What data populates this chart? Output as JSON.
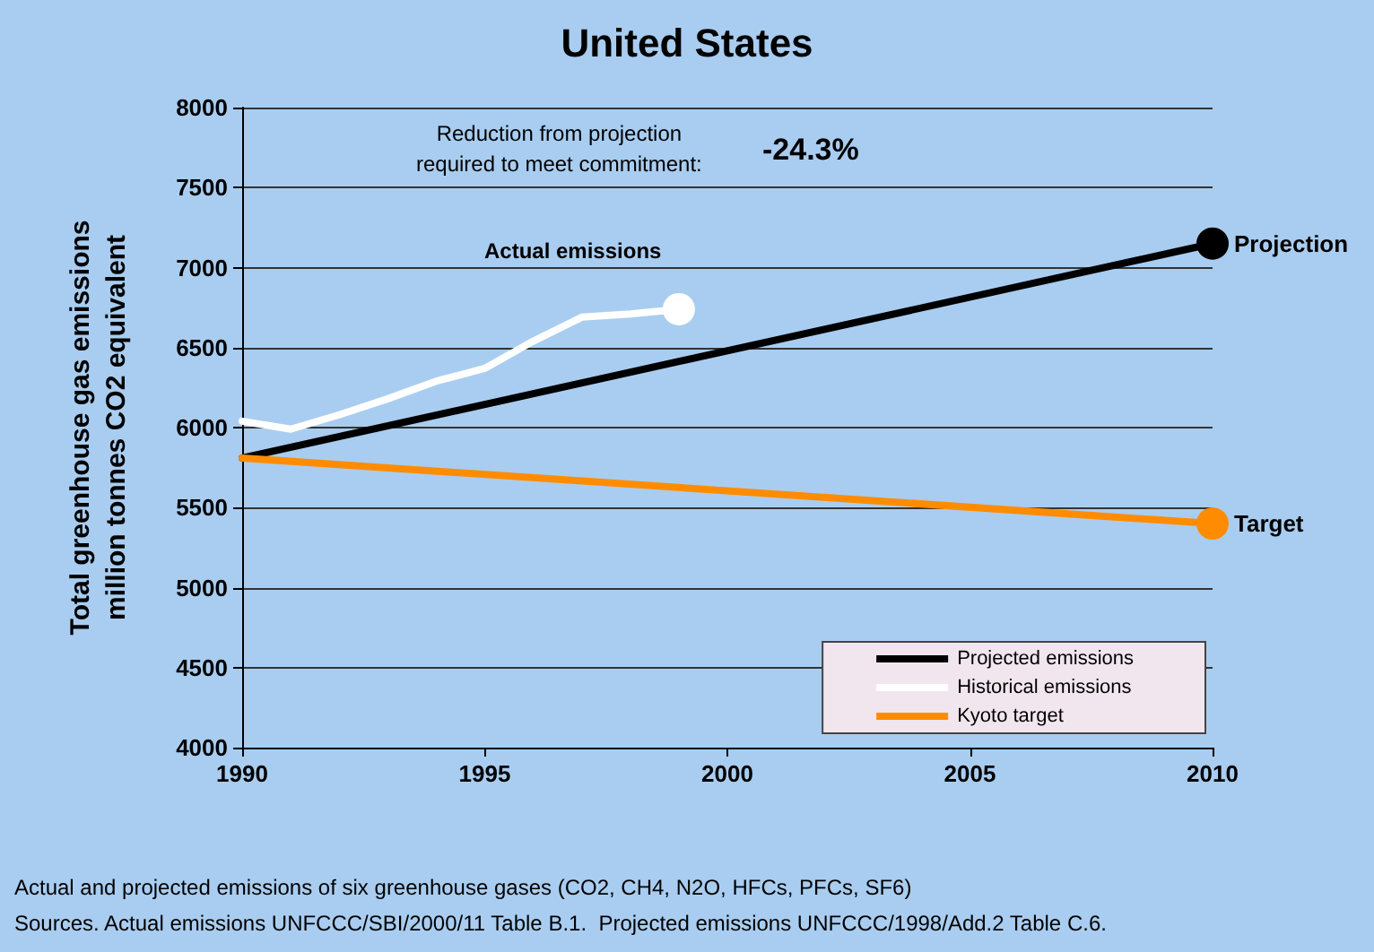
{
  "chart_data": {
    "type": "line",
    "title": "United States",
    "ylabel": "Total greenhouse gas emissions\nmillion tonnes CO2 equivalent",
    "xlim": [
      1990,
      2010
    ],
    "xticks": [
      1990,
      1995,
      2000,
      2005,
      2010
    ],
    "ylim": [
      4000,
      8000
    ],
    "yticks": [
      4000,
      4500,
      5000,
      5500,
      6000,
      6500,
      7000,
      7500,
      8000
    ],
    "grid": "y",
    "legend": "bottom right",
    "series": [
      {
        "name": "Projected emissions",
        "color": "#000000",
        "x": [
          1990,
          2010
        ],
        "values": [
          5810,
          7150
        ]
      },
      {
        "name": "Historical emissions",
        "color": "#ffffff",
        "x": [
          1990,
          1991,
          1992,
          1993,
          1994,
          1995,
          1996,
          1997,
          1998,
          1999
        ],
        "values": [
          6040,
          5990,
          6080,
          6180,
          6290,
          6370,
          6540,
          6690,
          6710,
          6740
        ]
      },
      {
        "name": "Kyoto target",
        "color": "#ff8c00",
        "x": [
          1990,
          2010
        ],
        "values": [
          5810,
          5400
        ]
      }
    ],
    "annotations": [
      "Reduction from projection\nrequired to meet commitment:",
      "-24.3%",
      "Actual emissions",
      {
        "text": "Projection",
        "x": 2010,
        "y": 7150
      },
      {
        "text": "Target",
        "x": 2010,
        "y": 5400
      },
      "Actual and projected emissions of six greenhouse gases (CO2, CH4, N2O, HFCs, PFCs, SF6)",
      "Sources. Actual emissions UNFCCC/SBI/2000/11 Table B.1.  Projected emissions UNFCCC/1998/Add.2 Table C.6."
    ]
  }
}
